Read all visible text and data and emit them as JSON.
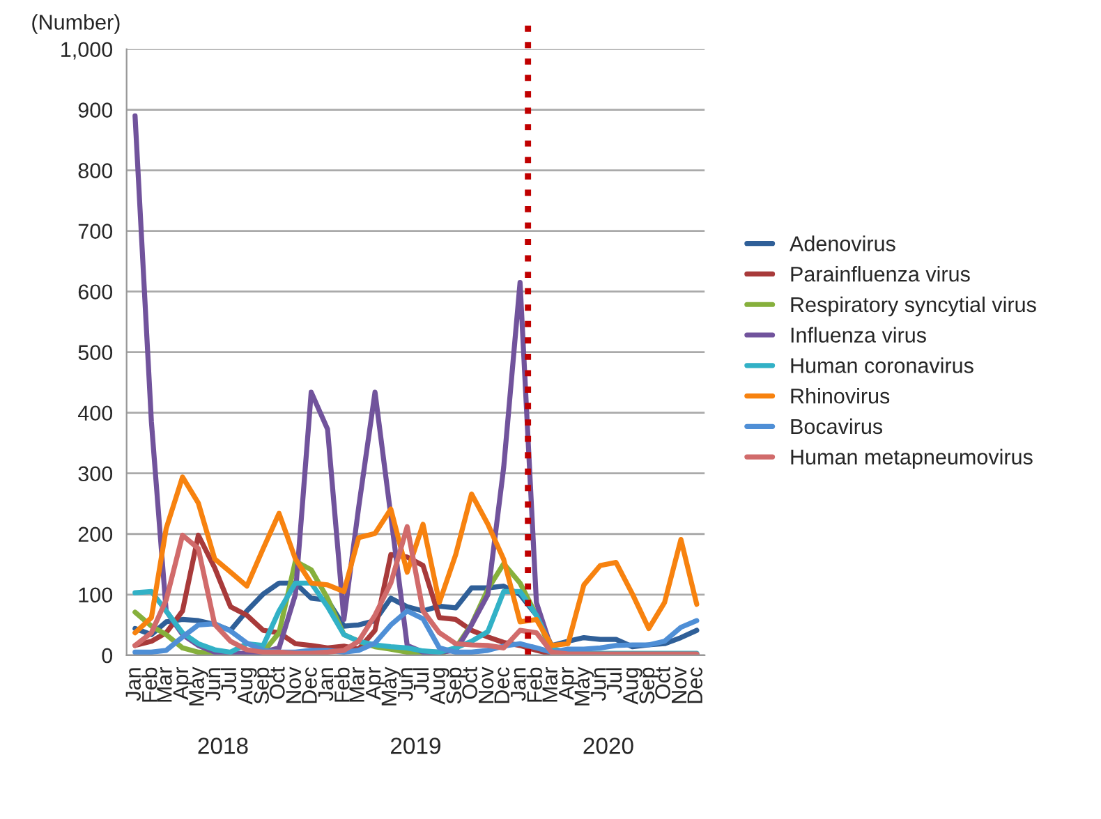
{
  "chart_data": {
    "type": "line",
    "ylabel": "(Number)",
    "x": [
      "2018-01",
      "2018-02",
      "2018-03",
      "2018-04",
      "2018-05",
      "2018-06",
      "2018-07",
      "2018-08",
      "2018-09",
      "2018-10",
      "2018-11",
      "2018-12",
      "2019-01",
      "2019-02",
      "2019-03",
      "2019-04",
      "2019-05",
      "2019-06",
      "2019-07",
      "2019-08",
      "2019-09",
      "2019-10",
      "2019-11",
      "2019-12",
      "2020-01",
      "2020-02",
      "2020-03",
      "2020-04",
      "2020-05",
      "2020-06",
      "2020-07",
      "2020-08",
      "2020-09",
      "2020-10",
      "2020-11",
      "2020-12"
    ],
    "series": [
      {
        "name": "Adenovirus",
        "color": "#2f5f98",
        "values": [
          44,
          34,
          55,
          59,
          57,
          51,
          41,
          73,
          101,
          119,
          119,
          94,
          91,
          48,
          50,
          57,
          94,
          80,
          73,
          81,
          78,
          111,
          111,
          114,
          100,
          66,
          16,
          23,
          29,
          26,
          26,
          14,
          17,
          19,
          29,
          41
        ]
      },
      {
        "name": "Parainfluenza virus",
        "color": "#a83a3a",
        "values": [
          16,
          23,
          37,
          73,
          198,
          144,
          80,
          66,
          41,
          37,
          19,
          16,
          12,
          15,
          10,
          41,
          166,
          162,
          148,
          62,
          59,
          41,
          30,
          21,
          16,
          8,
          2,
          2,
          2,
          2,
          2,
          2,
          2,
          2,
          2,
          2
        ]
      },
      {
        "name": "Respiratory syncytial virus",
        "color": "#86b03c",
        "values": [
          71,
          48,
          34,
          12,
          5,
          3,
          2,
          2,
          5,
          37,
          155,
          141,
          94,
          34,
          23,
          14,
          10,
          5,
          2,
          2,
          12,
          51,
          109,
          151,
          119,
          66,
          5,
          2,
          null,
          null,
          null,
          null,
          null,
          null,
          null,
          null
        ]
      },
      {
        "name": "Influenza virus",
        "color": "#71539c",
        "values": [
          890,
          385,
          73,
          34,
          16,
          5,
          3,
          3,
          5,
          12,
          100,
          434,
          373,
          59,
          244,
          434,
          230,
          16,
          5,
          5,
          8,
          50,
          100,
          310,
          615,
          87,
          10,
          2,
          2,
          2,
          2,
          2,
          2,
          2,
          2,
          2
        ]
      },
      {
        "name": "Human coronavirus",
        "color": "#32b1c6",
        "values": [
          103,
          105,
          73,
          37,
          19,
          9,
          5,
          19,
          16,
          73,
          119,
          119,
          80,
          34,
          23,
          17,
          14,
          12,
          7,
          5,
          12,
          23,
          39,
          105,
          105,
          66,
          12,
          3,
          3,
          3,
          3,
          3,
          3,
          3,
          3,
          3
        ]
      },
      {
        "name": "Rhinovirus",
        "color": "#f7820f",
        "values": [
          37,
          62,
          209,
          294,
          251,
          159,
          137,
          114,
          176,
          234,
          159,
          119,
          116,
          105,
          194,
          201,
          241,
          137,
          216,
          87,
          166,
          266,
          216,
          158,
          55,
          59,
          16,
          19,
          116,
          148,
          153,
          101,
          44,
          87,
          191,
          84
        ]
      },
      {
        "name": "Bocavirus",
        "color": "#4f8fd6",
        "values": [
          5,
          5,
          8,
          30,
          50,
          52,
          40,
          20,
          8,
          5,
          5,
          8,
          8,
          5,
          8,
          20,
          50,
          73,
          60,
          12,
          5,
          5,
          8,
          15,
          19,
          12,
          5,
          10,
          10,
          12,
          16,
          17,
          17,
          23,
          46,
          57
        ]
      },
      {
        "name": "Human metapneumovirus",
        "color": "#d16b6b",
        "values": [
          16,
          37,
          91,
          198,
          176,
          51,
          23,
          9,
          5,
          5,
          3,
          3,
          5,
          8,
          23,
          66,
          119,
          212,
          73,
          37,
          19,
          17,
          16,
          12,
          41,
          37,
          5,
          2,
          2,
          2,
          2,
          2,
          2,
          2,
          2,
          2
        ]
      }
    ],
    "xlim": [
      "2017-12-16",
      "2020-12-16"
    ],
    "xticks": [
      {
        "value": "2018-01",
        "label": "Jan"
      },
      {
        "value": "2018-02",
        "label": "Feb"
      },
      {
        "value": "2018-03",
        "label": "Mar"
      },
      {
        "value": "2018-04",
        "label": "Apr"
      },
      {
        "value": "2018-05",
        "label": "May"
      },
      {
        "value": "2018-06",
        "label": "Jun"
      },
      {
        "value": "2018-07",
        "label": "Jul"
      },
      {
        "value": "2018-08",
        "label": "Aug"
      },
      {
        "value": "2018-09",
        "label": "Sep"
      },
      {
        "value": "2018-10",
        "label": "Oct"
      },
      {
        "value": "2018-11",
        "label": "Nov"
      },
      {
        "value": "2018-12",
        "label": "Dec"
      },
      {
        "value": "2019-01",
        "label": "Jan"
      },
      {
        "value": "2019-02",
        "label": "Feb"
      },
      {
        "value": "2019-03",
        "label": "Mar"
      },
      {
        "value": "2019-04",
        "label": "Apr"
      },
      {
        "value": "2019-05",
        "label": "May"
      },
      {
        "value": "2019-06",
        "label": "Jun"
      },
      {
        "value": "2019-07",
        "label": "Jul"
      },
      {
        "value": "2019-08",
        "label": "Aug"
      },
      {
        "value": "2019-09",
        "label": "Sep"
      },
      {
        "value": "2019-10",
        "label": "Oct"
      },
      {
        "value": "2019-11",
        "label": "Nov"
      },
      {
        "value": "2019-12",
        "label": "Dec"
      },
      {
        "value": "2020-01",
        "label": "Jan"
      },
      {
        "value": "2020-02",
        "label": "Feb"
      },
      {
        "value": "2020-03",
        "label": "Mar"
      },
      {
        "value": "2020-04",
        "label": "Apr"
      },
      {
        "value": "2020-05",
        "label": "May"
      },
      {
        "value": "2020-06",
        "label": "Jun"
      },
      {
        "value": "2020-07",
        "label": "Jul"
      },
      {
        "value": "2020-08",
        "label": "Aug"
      },
      {
        "value": "2020-09",
        "label": "Sep"
      },
      {
        "value": "2020-10",
        "label": "Oct"
      },
      {
        "value": "2020-11",
        "label": "Nov"
      },
      {
        "value": "2020-12",
        "label": "Dec"
      }
    ],
    "ylim": [
      0,
      1000
    ],
    "yticks": [
      0,
      100,
      200,
      300,
      400,
      500,
      600,
      700,
      800,
      900,
      {
        "value": 1000,
        "label": "1,000"
      }
    ],
    "annotations": [
      "2018",
      "2019",
      "2020"
    ],
    "ref_lines": [
      {
        "axis": "x",
        "value": "2020-01-16",
        "color": "#c00000",
        "line_style": "dotted"
      }
    ],
    "grid": "y",
    "legend": "right",
    "marker": "none",
    "line_style": "solid"
  }
}
